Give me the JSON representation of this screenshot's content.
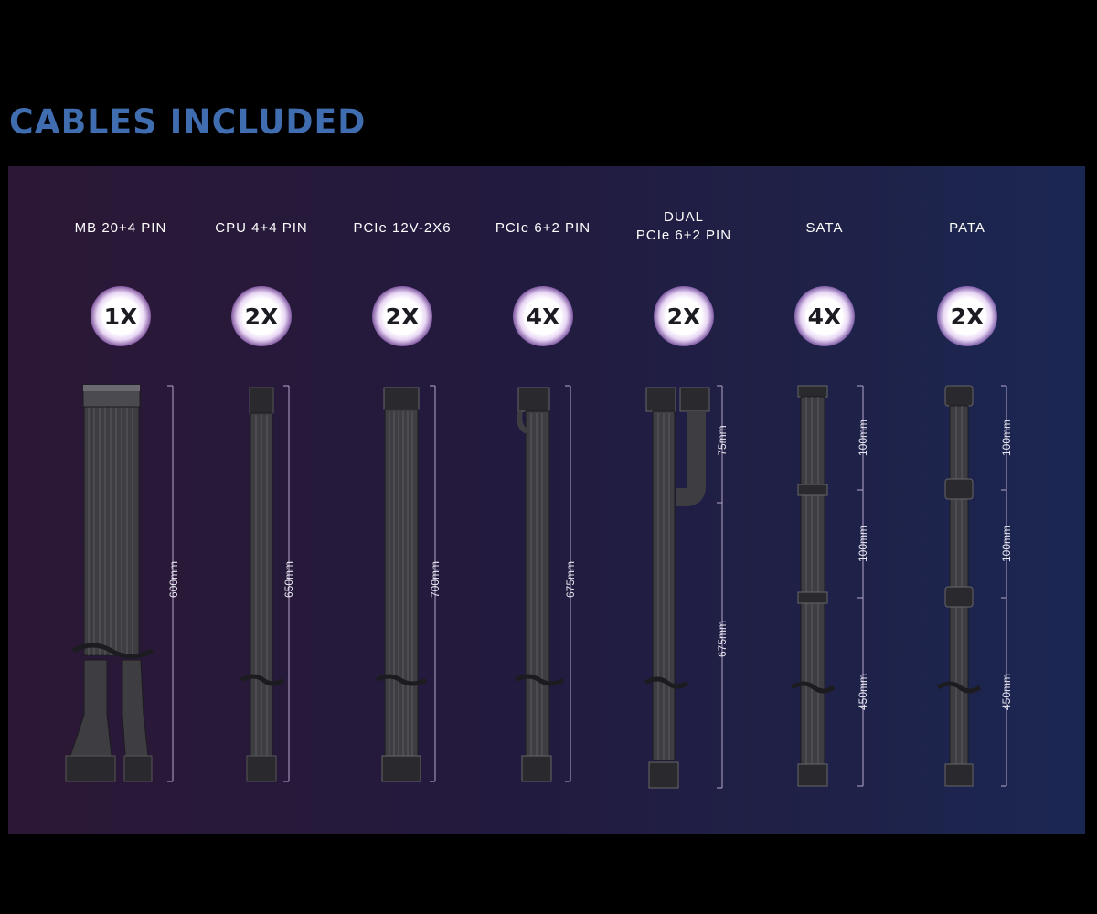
{
  "heading": "CABLES INCLUDED",
  "cables": [
    {
      "title_lines": [
        "MB 20+4 PIN"
      ],
      "count": "1X",
      "lengths": [
        "600mm"
      ]
    },
    {
      "title_lines": [
        "CPU 4+4 PIN"
      ],
      "count": "2X",
      "lengths": [
        "650mm"
      ]
    },
    {
      "title_lines": [
        "PCIe 12V-2X6"
      ],
      "count": "2X",
      "lengths": [
        "700mm"
      ]
    },
    {
      "title_lines": [
        "PCIe 6+2 PIN"
      ],
      "count": "4X",
      "lengths": [
        "675mm"
      ]
    },
    {
      "title_lines": [
        "DUAL",
        "PCIe 6+2 PIN"
      ],
      "count": "2X",
      "lengths": [
        "75mm",
        "675mm"
      ]
    },
    {
      "title_lines": [
        "SATA"
      ],
      "count": "4X",
      "lengths": [
        "100mm",
        "100mm",
        "450mm"
      ]
    },
    {
      "title_lines": [
        "PATA"
      ],
      "count": "2X",
      "lengths": [
        "100mm",
        "100mm",
        "450mm"
      ]
    }
  ],
  "colors": {
    "heading": "#3f6db0",
    "cable": "#3e3e42",
    "connector": "#2a2a2e"
  }
}
